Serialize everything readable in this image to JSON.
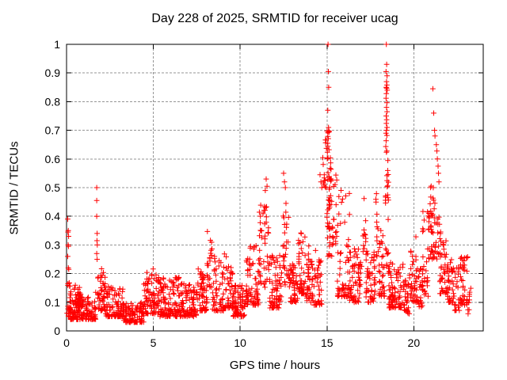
{
  "window": {
    "title": "Day 228 of 2025, SRMTID for receiver ucag"
  },
  "colors": {
    "background": "#ffffff",
    "plot_border": "#000000",
    "grid": "#969696",
    "text": "#000000",
    "marker": "#ff0000"
  },
  "chart_data": {
    "type": "scatter",
    "title": "Day 228 of 2025, SRMTID for receiver ucag",
    "xlabel": "GPS time / hours",
    "ylabel": "SRMTID / TECUs",
    "xlim": [
      0,
      24
    ],
    "ylim": [
      0,
      1
    ],
    "xticks": [
      0,
      5,
      10,
      15,
      20
    ],
    "xtick_labels": [
      "0",
      "5",
      "10",
      "15",
      "20"
    ],
    "yticks": [
      0,
      0.1,
      0.2,
      0.3,
      0.4,
      0.5,
      0.6,
      0.7,
      0.8,
      0.9,
      1
    ],
    "ytick_labels": [
      "0",
      "0.1",
      "0.2",
      "0.3",
      "0.4",
      "0.5",
      "0.6",
      "0.7",
      "0.8",
      "0.9",
      "1"
    ],
    "grid": true,
    "legend": "none",
    "marker": "plus",
    "marker_color": "#ff0000",
    "marker_half_size": 3.4,
    "seed": 228,
    "baseline_segments": [
      [
        0.02,
        0.2,
        22,
        0.05,
        0.17,
        1.5
      ],
      [
        0.2,
        1.68,
        150,
        0.04,
        0.14,
        2.0
      ],
      [
        0.45,
        0.75,
        18,
        0.08,
        0.17,
        1.4
      ],
      [
        1.78,
        2.25,
        45,
        0.07,
        0.22,
        1.8
      ],
      [
        2.25,
        3.25,
        95,
        0.05,
        0.16,
        2.0
      ],
      [
        3.25,
        4.45,
        110,
        0.03,
        0.1,
        1.8
      ],
      [
        4.45,
        5.35,
        85,
        0.06,
        0.22,
        1.8
      ],
      [
        5.35,
        6.55,
        110,
        0.05,
        0.19,
        2.0
      ],
      [
        6.55,
        7.5,
        90,
        0.05,
        0.17,
        2.0
      ],
      [
        7.5,
        8.1,
        55,
        0.07,
        0.22,
        1.8
      ],
      [
        8.1,
        8.4,
        22,
        0.13,
        0.35,
        1.3
      ],
      [
        8.4,
        9.05,
        55,
        0.07,
        0.26,
        2.0
      ],
      [
        9.05,
        9.6,
        50,
        0.08,
        0.3,
        2.2
      ],
      [
        9.6,
        10.35,
        70,
        0.05,
        0.16,
        1.8
      ],
      [
        10.35,
        11.1,
        70,
        0.09,
        0.3,
        1.9
      ],
      [
        11.1,
        11.7,
        45,
        0.15,
        0.46,
        1.5
      ],
      [
        11.7,
        12.4,
        65,
        0.08,
        0.27,
        1.9
      ],
      [
        12.45,
        12.8,
        30,
        0.15,
        0.47,
        1.4
      ],
      [
        12.8,
        13.35,
        50,
        0.1,
        0.27,
        1.8
      ],
      [
        13.35,
        13.75,
        40,
        0.13,
        0.36,
        1.6
      ],
      [
        13.75,
        14.7,
        85,
        0.09,
        0.3,
        1.9
      ],
      [
        14.75,
        15.0,
        14,
        0.5,
        0.67,
        1.0
      ],
      [
        15.0,
        15.25,
        30,
        0.42,
        0.7,
        1.0
      ],
      [
        15.0,
        15.3,
        26,
        0.26,
        0.46,
        1.2
      ],
      [
        15.3,
        15.6,
        18,
        0.3,
        0.56,
        1.2
      ],
      [
        15.6,
        16.3,
        60,
        0.12,
        0.5,
        2.2
      ],
      [
        16.3,
        17.0,
        65,
        0.1,
        0.3,
        1.9
      ],
      [
        17.05,
        17.25,
        14,
        0.24,
        0.48,
        1.2
      ],
      [
        17.25,
        17.8,
        50,
        0.1,
        0.28,
        1.9
      ],
      [
        17.8,
        17.98,
        12,
        0.26,
        0.48,
        1.2
      ],
      [
        17.98,
        18.32,
        34,
        0.12,
        0.35,
        1.7
      ],
      [
        18.36,
        18.55,
        12,
        0.5,
        0.67,
        1.0
      ],
      [
        18.36,
        18.56,
        18,
        0.2,
        0.48,
        1.2
      ],
      [
        18.56,
        19.4,
        80,
        0.08,
        0.24,
        2.0
      ],
      [
        19.4,
        19.75,
        30,
        0.06,
        0.18,
        1.8
      ],
      [
        19.75,
        20.25,
        45,
        0.1,
        0.33,
        1.8
      ],
      [
        20.25,
        20.5,
        20,
        0.08,
        0.22,
        1.8
      ],
      [
        20.5,
        20.85,
        28,
        0.12,
        0.42,
        1.5
      ],
      [
        20.85,
        21.15,
        32,
        0.25,
        0.52,
        1.2
      ],
      [
        21.1,
        21.55,
        26,
        0.25,
        0.45,
        1.4
      ],
      [
        21.5,
        21.95,
        42,
        0.13,
        0.32,
        1.5
      ],
      [
        21.95,
        22.35,
        35,
        0.1,
        0.25,
        1.8
      ],
      [
        22.35,
        22.65,
        20,
        0.07,
        0.22,
        1.8
      ],
      [
        22.65,
        23.1,
        40,
        0.09,
        0.27,
        1.7
      ],
      [
        23.05,
        23.3,
        10,
        0.06,
        0.15,
        1.5
      ]
    ],
    "spike_points": [
      [
        0.07,
        0.39
      ],
      [
        0.1,
        0.35
      ],
      [
        0.08,
        0.345
      ],
      [
        0.12,
        0.33
      ],
      [
        0.09,
        0.3
      ],
      [
        0.11,
        0.295
      ],
      [
        0.07,
        0.26
      ],
      [
        0.1,
        0.22
      ],
      [
        0.13,
        0.215
      ],
      [
        1.74,
        0.5
      ],
      [
        1.74,
        0.455
      ],
      [
        1.74,
        0.4
      ],
      [
        1.76,
        0.34
      ],
      [
        1.75,
        0.315
      ],
      [
        1.77,
        0.3
      ],
      [
        1.74,
        0.27
      ],
      [
        1.76,
        0.25
      ],
      [
        11.5,
        0.53
      ],
      [
        11.55,
        0.505
      ],
      [
        11.45,
        0.49
      ],
      [
        12.5,
        0.55
      ],
      [
        12.55,
        0.52
      ],
      [
        12.6,
        0.5
      ],
      [
        14.6,
        0.545
      ],
      [
        14.65,
        0.52
      ],
      [
        14.7,
        0.5
      ],
      [
        15.06,
        1.0
      ],
      [
        15.08,
        0.905
      ],
      [
        15.1,
        0.85
      ],
      [
        15.05,
        0.77
      ],
      [
        15.09,
        0.71
      ],
      [
        15.12,
        0.695
      ],
      [
        18.42,
        1.0
      ],
      [
        18.44,
        0.93
      ],
      [
        18.4,
        0.905
      ],
      [
        18.46,
        0.89
      ],
      [
        18.43,
        0.87
      ],
      [
        18.45,
        0.858
      ],
      [
        18.41,
        0.85
      ],
      [
        18.44,
        0.847
      ],
      [
        18.47,
        0.84
      ],
      [
        18.42,
        0.828
      ],
      [
        18.4,
        0.812
      ],
      [
        18.45,
        0.796
      ],
      [
        18.43,
        0.78
      ],
      [
        18.46,
        0.765
      ],
      [
        18.41,
        0.75
      ],
      [
        18.44,
        0.737
      ],
      [
        18.42,
        0.724
      ],
      [
        18.46,
        0.71
      ],
      [
        18.43,
        0.7
      ],
      [
        18.4,
        0.69
      ],
      [
        18.45,
        0.682
      ],
      [
        21.1,
        0.845
      ],
      [
        21.15,
        0.76
      ],
      [
        21.2,
        0.7
      ],
      [
        21.22,
        0.68
      ],
      [
        21.3,
        0.65
      ],
      [
        21.33,
        0.628
      ],
      [
        21.36,
        0.6
      ],
      [
        21.4,
        0.575
      ],
      [
        21.42,
        0.55
      ],
      [
        21.45,
        0.52
      ],
      [
        21.12,
        0.5
      ]
    ]
  }
}
